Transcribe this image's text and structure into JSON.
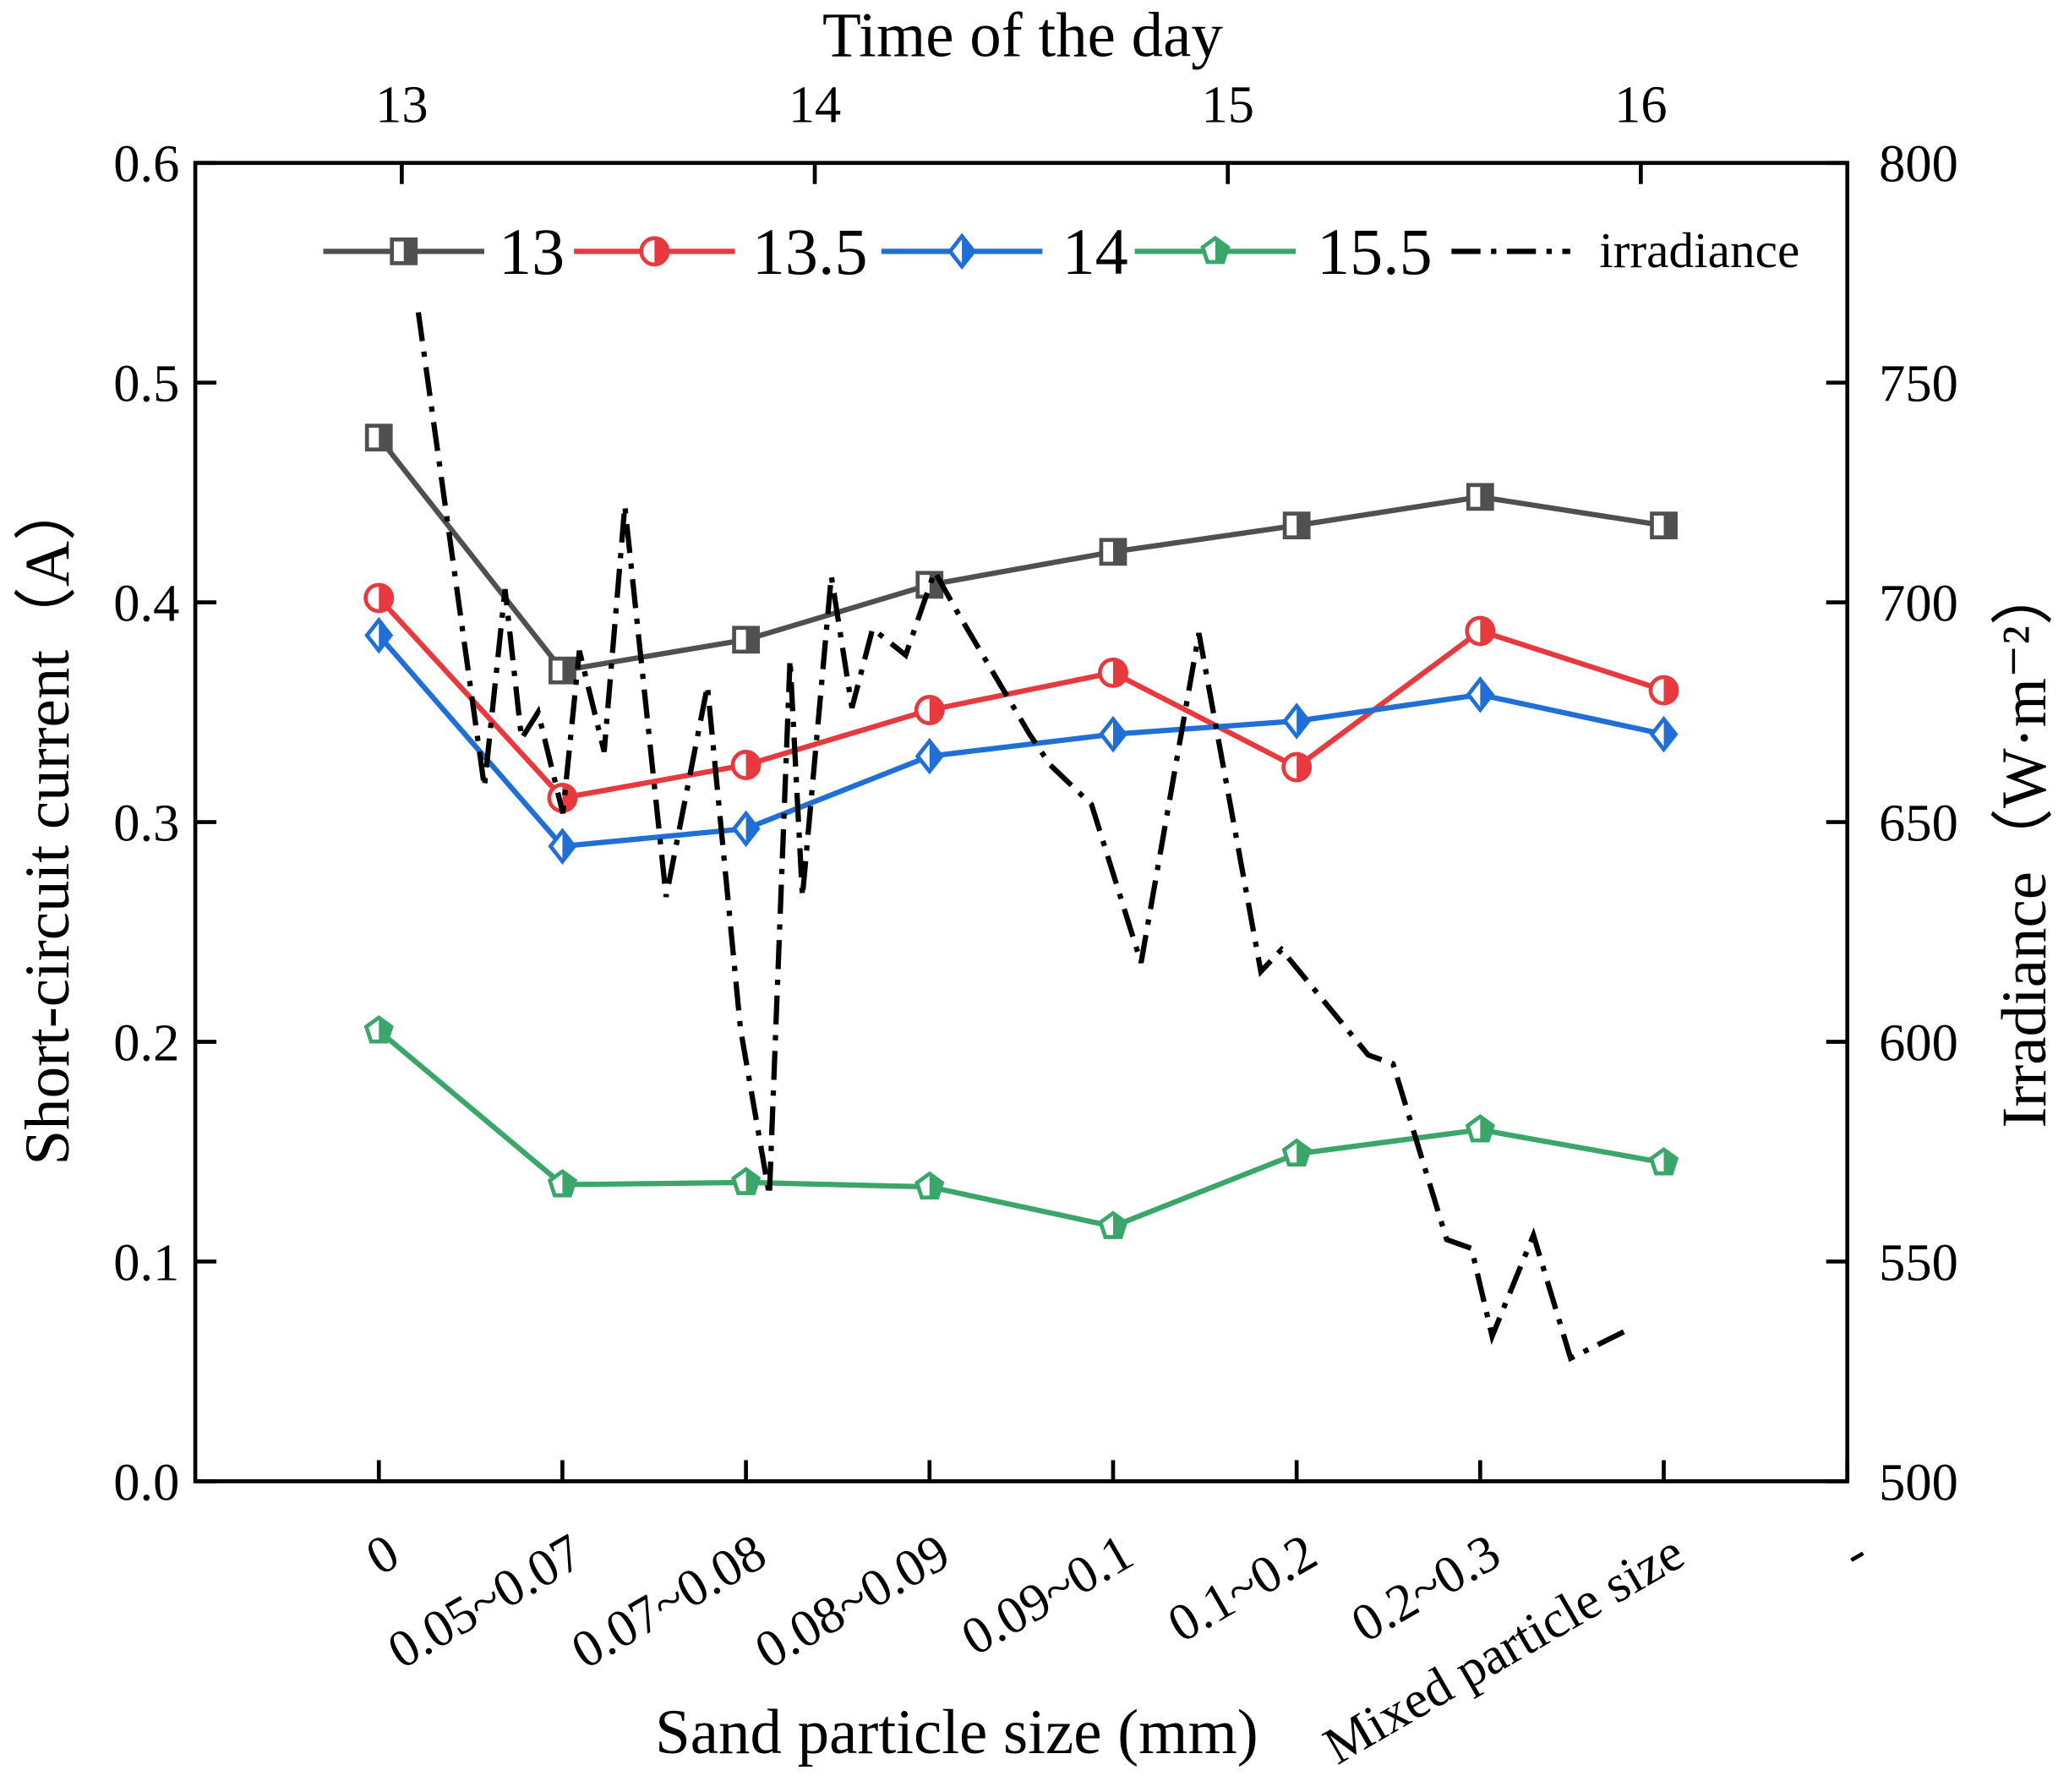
{
  "chart_data": {
    "type": "line",
    "xlabel": "Sand particle size (mm)",
    "ylabel": "Short-circuit current（A）",
    "y2label": "Irradiance（W·m⁻²）",
    "x2label": "Time of the day",
    "categories": [
      "0",
      "0.05~0.07",
      "0.07~0.08",
      "0.08~0.09",
      "0.09~0.1",
      "0.1~0.2",
      "0.2~0.3",
      "Mixed particle size",
      "-"
    ],
    "ylim": [
      0,
      0.6
    ],
    "yticks": [
      {
        "value": 0,
        "label": "0.0"
      },
      0.1,
      0.2,
      0.3,
      0.4,
      0.5,
      0.6
    ],
    "y2lim": [
      500,
      800
    ],
    "y2ticks": [
      500,
      550,
      600,
      650,
      700,
      750,
      800
    ],
    "x2lim": [
      12.5,
      16.5
    ],
    "x2ticks": [
      13,
      14,
      15,
      16
    ],
    "legend": "top",
    "series": [
      {
        "name": "13",
        "color": "#505050",
        "marker": "square",
        "values": [
          0.475,
          0.369,
          0.383,
          0.408,
          0.423,
          0.435,
          0.448,
          0.435,
          null
        ]
      },
      {
        "name": "13.5",
        "color": "#e8393f",
        "marker": "circle",
        "values": [
          0.402,
          0.311,
          0.326,
          0.351,
          0.368,
          0.325,
          0.387,
          0.36,
          null
        ]
      },
      {
        "name": "14",
        "color": "#1f6fd6",
        "marker": "diamond",
        "values": [
          0.385,
          0.289,
          0.297,
          0.33,
          0.34,
          0.346,
          0.358,
          0.34,
          null
        ]
      },
      {
        "name": "15.5",
        "color": "#3aa66a",
        "marker": "pentagon",
        "values": [
          0.205,
          0.135,
          0.136,
          0.134,
          0.116,
          0.149,
          0.16,
          0.145,
          null
        ]
      },
      {
        "name": "irradiance",
        "color": "#000000",
        "axis": "y2",
        "style": "dashdot",
        "x": [
          13.04,
          13.2,
          13.25,
          13.29,
          13.33,
          13.39,
          13.43,
          13.49,
          13.54,
          13.64,
          13.74,
          13.82,
          13.89,
          13.94,
          13.97,
          14.04,
          14.09,
          14.14,
          14.22,
          14.29,
          14.35,
          14.52,
          14.57,
          14.67,
          14.79,
          14.93,
          15.08,
          15.13,
          15.34,
          15.4,
          15.53,
          15.59,
          15.64,
          15.74,
          15.83,
          15.98
        ],
        "values": [
          766,
          658,
          703,
          669,
          675,
          652,
          689,
          666,
          722,
          633,
          681,
          603,
          565,
          687,
          633,
          706,
          676,
          694,
          688,
          707,
          697,
          670,
          663,
          654,
          618,
          693,
          616,
          621,
          597,
          595,
          555,
          553,
          533,
          556,
          528,
          535
        ]
      }
    ]
  }
}
